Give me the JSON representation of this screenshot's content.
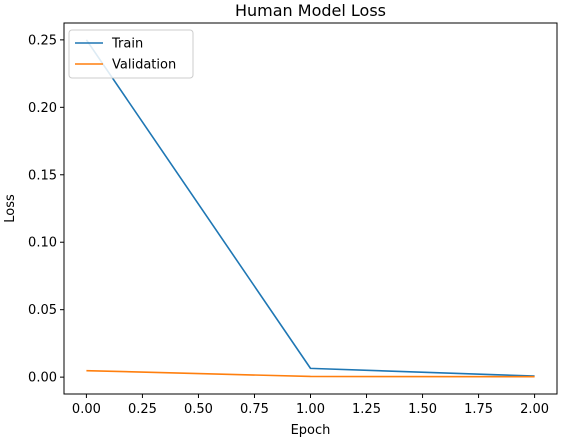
{
  "chart_data": {
    "type": "line",
    "title": "Human Model Loss",
    "xlabel": "Epoch",
    "ylabel": "Loss",
    "xlim": [
      -0.1,
      2.1
    ],
    "ylim": [
      -0.0125,
      0.2625
    ],
    "xticks": [
      0.0,
      0.25,
      0.5,
      0.75,
      1.0,
      1.25,
      1.5,
      1.75,
      2.0
    ],
    "xtick_labels": [
      "0.00",
      "0.25",
      "0.50",
      "0.75",
      "1.00",
      "1.25",
      "1.50",
      "1.75",
      "2.00"
    ],
    "yticks": [
      0.0,
      0.05,
      0.1,
      0.15,
      0.2,
      0.25
    ],
    "ytick_labels": [
      "0.00",
      "0.05",
      "0.10",
      "0.15",
      "0.20",
      "0.25"
    ],
    "grid": false,
    "legend_position": "upper-left",
    "x": [
      0,
      1,
      2
    ],
    "series": [
      {
        "name": "Train",
        "color": "#1f77b4",
        "values": [
          0.25,
          0.0065,
          0.0008
        ]
      },
      {
        "name": "Validation",
        "color": "#ff7f0e",
        "values": [
          0.0048,
          0.0005,
          0.0003
        ]
      }
    ]
  }
}
